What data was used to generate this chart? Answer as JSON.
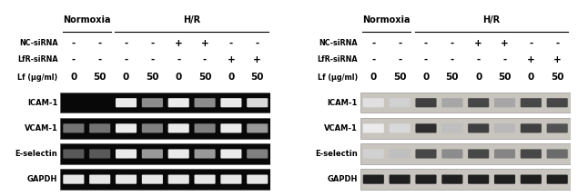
{
  "panel_left": {
    "type": "RT-PCR",
    "header_normoxia": "Normoxia",
    "header_hr": "H/R",
    "row_labels": [
      "NC-siRNA",
      "LfR-siRNA",
      "Lf (μg/ml)"
    ],
    "symbols": [
      [
        "-",
        "-",
        "-",
        "-",
        "+",
        "+",
        "-",
        "-"
      ],
      [
        "-",
        "-",
        "-",
        "-",
        "-",
        "-",
        "+",
        "+"
      ],
      [
        "0",
        "50",
        "0",
        "50",
        "0",
        "50",
        "0",
        "50"
      ]
    ],
    "band_labels": [
      "ICAM-1",
      "VCAM-1",
      "E-selectin",
      "GAPDH"
    ],
    "band_intensities": {
      "ICAM-1": [
        0.0,
        0.0,
        0.92,
        0.55,
        0.92,
        0.55,
        0.92,
        0.85
      ],
      "VCAM-1": [
        0.45,
        0.45,
        0.92,
        0.5,
        0.92,
        0.5,
        0.92,
        0.6
      ],
      "E-selectin": [
        0.35,
        0.35,
        0.92,
        0.6,
        0.92,
        0.6,
        0.92,
        0.5
      ],
      "GAPDH": [
        0.9,
        0.9,
        0.9,
        0.9,
        0.9,
        0.9,
        0.9,
        0.9
      ]
    },
    "bg_color": "#080808",
    "band_color": "#ffffff"
  },
  "panel_right": {
    "type": "Western Blot",
    "header_normoxia": "Normoxia",
    "header_hr": "H/R",
    "row_labels": [
      "NC-siRNA",
      "LfR-siRNA",
      "Lf (μg/ml)"
    ],
    "symbols": [
      [
        "-",
        "-",
        "-",
        "-",
        "+",
        "+",
        "-",
        "-"
      ],
      [
        "-",
        "-",
        "-",
        "-",
        "-",
        "-",
        "+",
        "+"
      ],
      [
        "0",
        "50",
        "0",
        "50",
        "0",
        "50",
        "0",
        "50"
      ]
    ],
    "band_labels": [
      "ICAM-1",
      "VCAM-1",
      "E-selectin",
      "GAPDH"
    ],
    "band_intensities": {
      "ICAM-1": [
        0.12,
        0.18,
        0.75,
        0.35,
        0.72,
        0.35,
        0.72,
        0.72
      ],
      "VCAM-1": [
        0.08,
        0.15,
        0.82,
        0.25,
        0.75,
        0.28,
        0.75,
        0.68
      ],
      "E-selectin": [
        0.18,
        0.25,
        0.72,
        0.45,
        0.72,
        0.48,
        0.72,
        0.58
      ],
      "GAPDH": [
        0.88,
        0.88,
        0.88,
        0.88,
        0.88,
        0.88,
        0.88,
        0.88
      ]
    },
    "wb_bg_color": "#c8c4be",
    "wb_band_dark": "#1a1a1a"
  },
  "figure_bg": "#ffffff",
  "label_fontsize": 5.8,
  "header_fontsize": 7.0,
  "symbol_fontsize": 7.5,
  "band_label_fontsize": 6.0,
  "lf_fontsize": 6.0
}
